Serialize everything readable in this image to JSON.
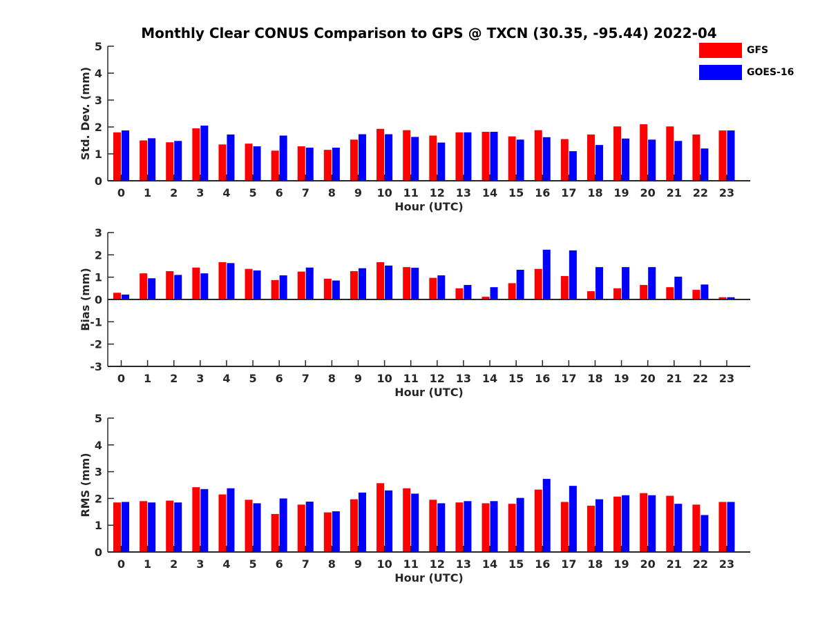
{
  "title": "Monthly Clear CONUS Comparison to GPS @ TXCN (30.35, -95.44) 2022-04",
  "legend": {
    "placement": "top-right",
    "items": [
      {
        "name": "GFS",
        "color": "#ff0000"
      },
      {
        "name": "GOES-16",
        "color": "#0000ff"
      }
    ]
  },
  "chart_data": [
    {
      "type": "bar",
      "xlabel": "Hour (UTC)",
      "ylabel": "Std. Dev. (mm)",
      "ylim": [
        0,
        5
      ],
      "yticks": [
        0,
        1,
        2,
        3,
        4,
        5
      ],
      "categories": [
        "0",
        "1",
        "2",
        "3",
        "4",
        "5",
        "6",
        "7",
        "8",
        "9",
        "10",
        "11",
        "12",
        "13",
        "14",
        "15",
        "16",
        "17",
        "18",
        "19",
        "20",
        "21",
        "22",
        "23"
      ],
      "series": [
        {
          "name": "GFS",
          "color": "#ff0000",
          "values": [
            1.8,
            1.5,
            1.43,
            1.95,
            1.35,
            1.38,
            1.12,
            1.28,
            1.15,
            1.53,
            1.93,
            1.88,
            1.68,
            1.8,
            1.82,
            1.65,
            1.88,
            1.55,
            1.72,
            2.02,
            2.1,
            2.02,
            1.72,
            1.87
          ]
        },
        {
          "name": "GOES-16",
          "color": "#0000ff",
          "values": [
            1.87,
            1.58,
            1.48,
            2.05,
            1.72,
            1.28,
            1.68,
            1.23,
            1.23,
            1.73,
            1.73,
            1.63,
            1.42,
            1.8,
            1.82,
            1.53,
            1.62,
            1.1,
            1.33,
            1.57,
            1.53,
            1.48,
            1.2,
            1.87
          ]
        }
      ]
    },
    {
      "type": "bar",
      "xlabel": "Hour (UTC)",
      "ylabel": "Bias (mm)",
      "ylim": [
        -3,
        3
      ],
      "yticks": [
        -3,
        -2,
        -1,
        0,
        1,
        2,
        3
      ],
      "categories": [
        "0",
        "1",
        "2",
        "3",
        "4",
        "5",
        "6",
        "7",
        "8",
        "9",
        "10",
        "11",
        "12",
        "13",
        "14",
        "15",
        "16",
        "17",
        "18",
        "19",
        "20",
        "21",
        "22",
        "23"
      ],
      "series": [
        {
          "name": "GFS",
          "color": "#ff0000",
          "values": [
            0.3,
            1.17,
            1.27,
            1.43,
            1.67,
            1.37,
            0.87,
            1.25,
            0.93,
            1.27,
            1.67,
            1.45,
            0.97,
            0.5,
            0.12,
            0.73,
            1.37,
            1.05,
            0.37,
            0.5,
            0.65,
            0.55,
            0.43,
            0.1
          ]
        },
        {
          "name": "GOES-16",
          "color": "#0000ff",
          "values": [
            0.22,
            0.95,
            1.1,
            1.17,
            1.63,
            1.3,
            1.08,
            1.43,
            0.85,
            1.4,
            1.52,
            1.42,
            1.08,
            0.65,
            0.55,
            1.33,
            2.23,
            2.2,
            1.45,
            1.45,
            1.45,
            1.02,
            0.67,
            0.1
          ]
        }
      ]
    },
    {
      "type": "bar",
      "xlabel": "Hour (UTC)",
      "ylabel": "RMS (mm)",
      "ylim": [
        0,
        5
      ],
      "yticks": [
        0,
        1,
        2,
        3,
        4,
        5
      ],
      "categories": [
        "0",
        "1",
        "2",
        "3",
        "4",
        "5",
        "6",
        "7",
        "8",
        "9",
        "10",
        "11",
        "12",
        "13",
        "14",
        "15",
        "16",
        "17",
        "18",
        "19",
        "20",
        "21",
        "22",
        "23"
      ],
      "series": [
        {
          "name": "GFS",
          "color": "#ff0000",
          "values": [
            1.85,
            1.9,
            1.92,
            2.42,
            2.15,
            1.95,
            1.42,
            1.77,
            1.48,
            1.97,
            2.57,
            2.38,
            1.95,
            1.85,
            1.82,
            1.8,
            2.33,
            1.87,
            1.73,
            2.07,
            2.2,
            2.1,
            1.77,
            1.87
          ]
        },
        {
          "name": "GOES-16",
          "color": "#0000ff",
          "values": [
            1.87,
            1.85,
            1.85,
            2.35,
            2.38,
            1.82,
            2.0,
            1.88,
            1.52,
            2.22,
            2.3,
            2.18,
            1.82,
            1.9,
            1.9,
            2.02,
            2.73,
            2.47,
            1.97,
            2.12,
            2.12,
            1.8,
            1.38,
            1.87
          ]
        }
      ]
    }
  ]
}
